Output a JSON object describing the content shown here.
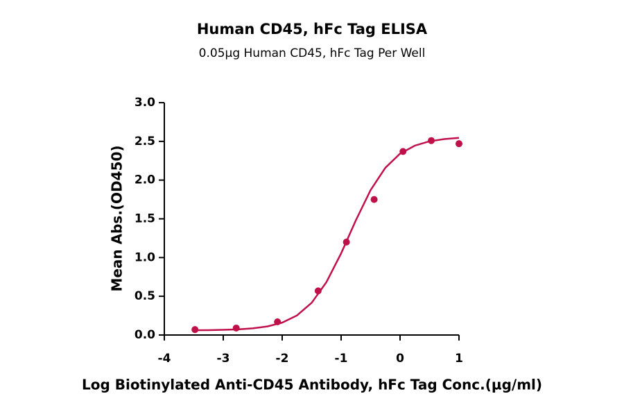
{
  "chart_data": {
    "type": "scatter",
    "title": "Human CD45, hFc Tag ELISA",
    "subtitle": "0.05µg Human CD45, hFc Tag Per Well",
    "x_label": "Log Biotinylated Anti-CD45 Antibody, hFc Tag Conc.(µg/ml)",
    "y_label": "Mean Abs.(OD450)",
    "xlim": [
      -4,
      1
    ],
    "xticks": [
      -4,
      -3,
      -2,
      -1,
      0,
      1
    ],
    "ylim": [
      0,
      3
    ],
    "yticks": [
      {
        "value": 0,
        "label": "0.0"
      },
      {
        "value": 0.5,
        "label": "0.5"
      },
      {
        "value": 1,
        "label": "1.0"
      },
      {
        "value": 1.5,
        "label": "1.5"
      },
      {
        "value": 2,
        "label": "2.0"
      },
      {
        "value": 2.5,
        "label": "2.5"
      },
      {
        "value": 3,
        "label": "3.0"
      }
    ],
    "series": [
      {
        "type": "scatter",
        "color": "#c0104a",
        "x": [
          -3.48,
          -2.78,
          -2.08,
          -1.39,
          -0.91,
          -0.44,
          0.05,
          0.53,
          1.0
        ],
        "values": [
          0.07,
          0.09,
          0.17,
          0.57,
          1.2,
          1.75,
          2.37,
          2.51,
          2.47
        ]
      },
      {
        "type": "line",
        "color": "#c0104a",
        "x": [
          -3.5,
          -3.25,
          -3.0,
          -2.75,
          -2.5,
          -2.25,
          -2.0,
          -1.75,
          -1.5,
          -1.25,
          -1.0,
          -0.75,
          -0.5,
          -0.25,
          0,
          0.25,
          0.5,
          0.75,
          1.0
        ],
        "values": [
          0.062,
          0.063,
          0.067,
          0.073,
          0.086,
          0.111,
          0.16,
          0.252,
          0.416,
          0.682,
          1.054,
          1.481,
          1.871,
          2.159,
          2.342,
          2.445,
          2.501,
          2.53,
          2.545
        ]
      }
    ]
  }
}
